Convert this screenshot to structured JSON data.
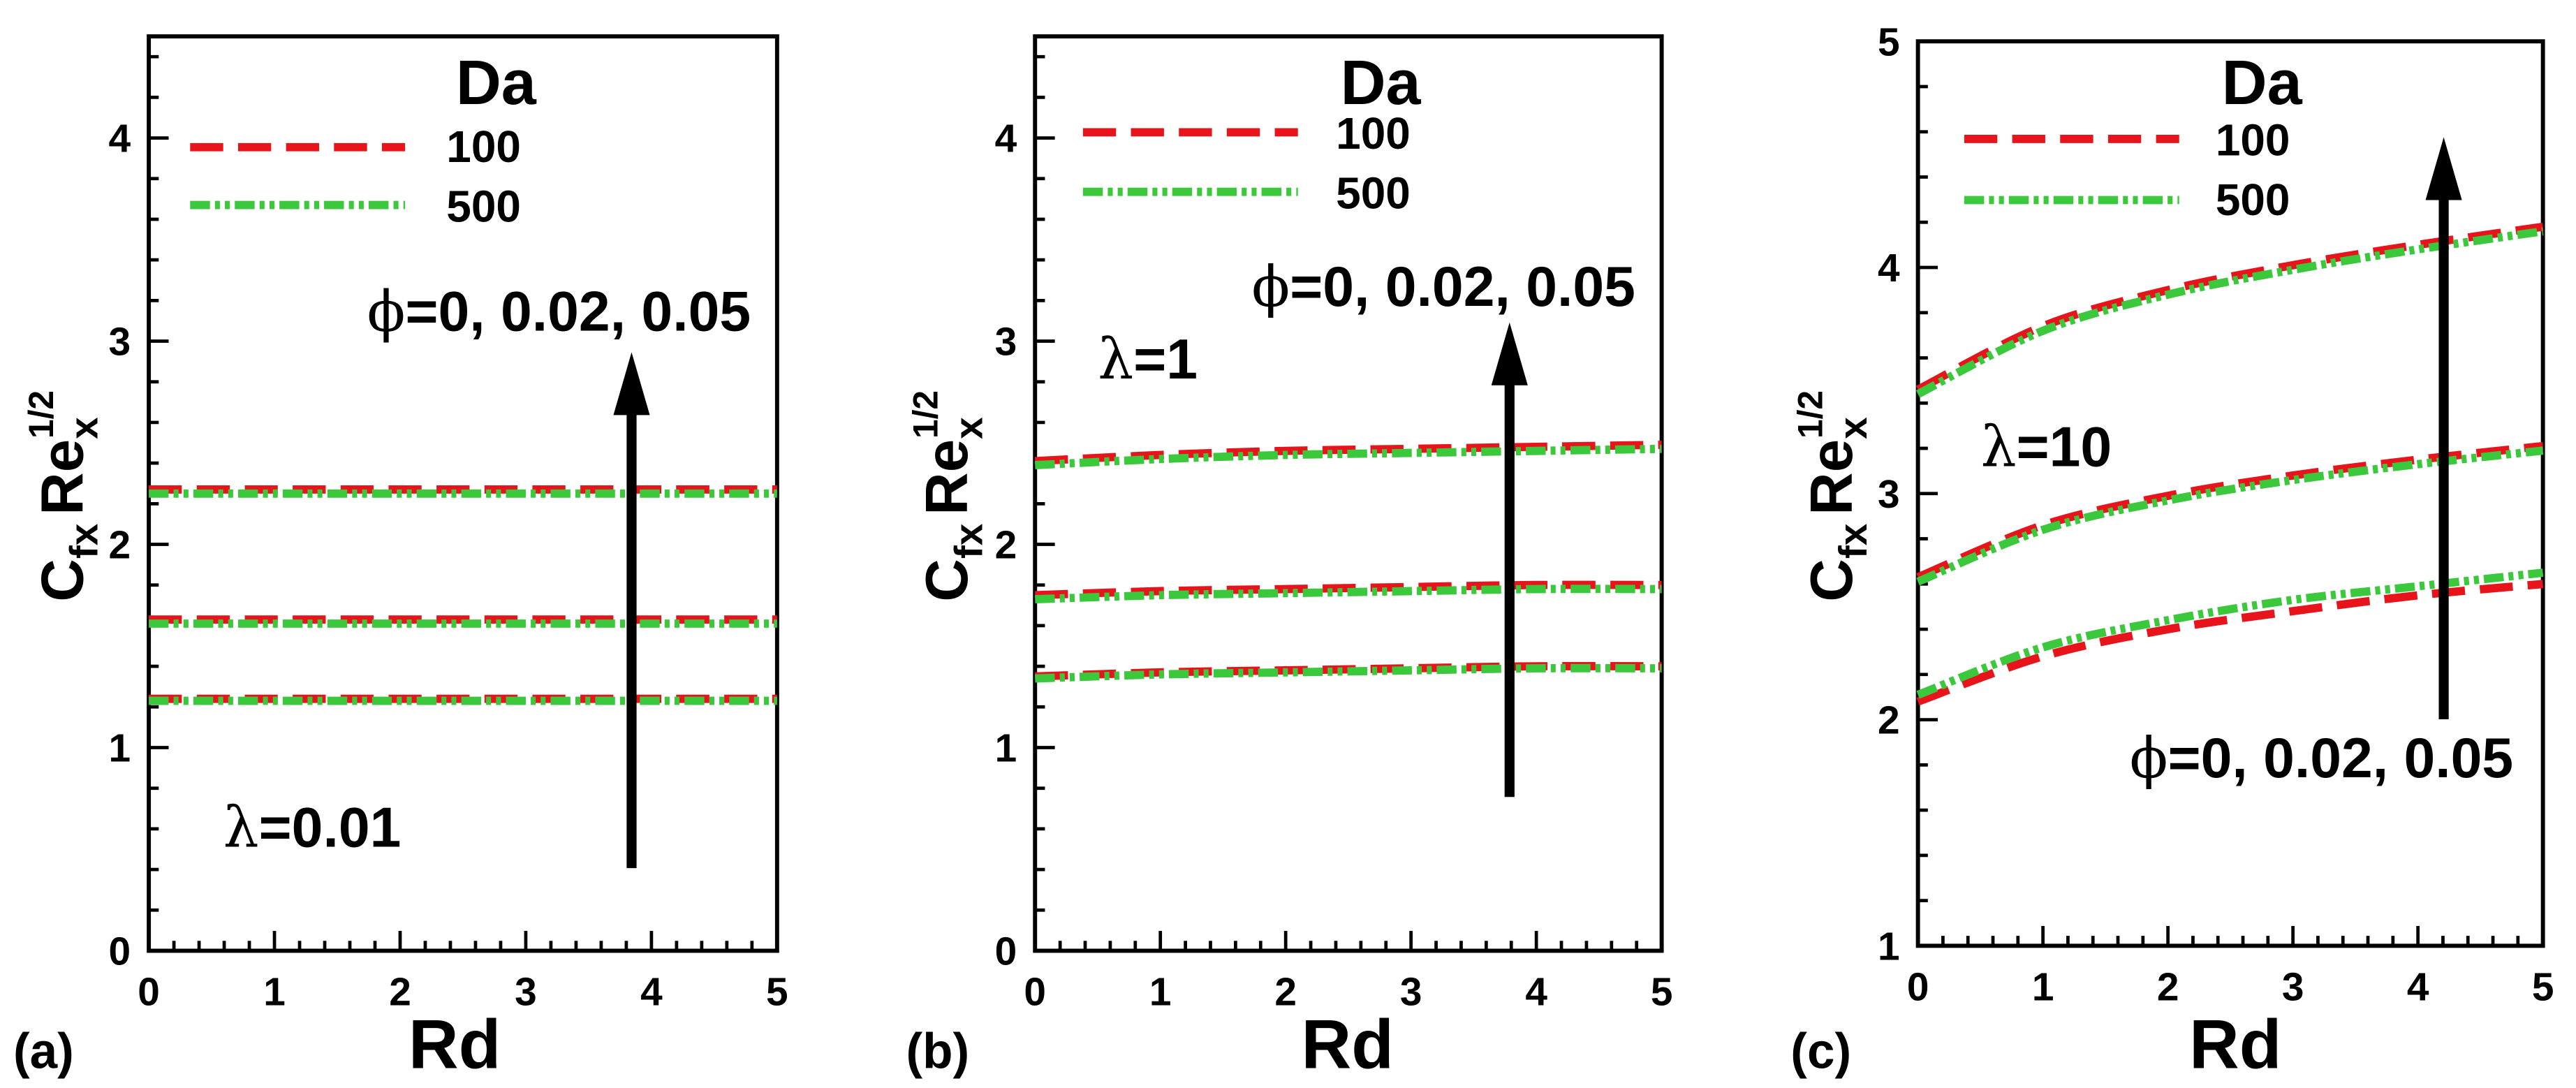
{
  "chart_data": [
    {
      "panel_label": "(a)",
      "type": "line",
      "xlabel": "Rd",
      "ylabel": {
        "c": "C",
        "c_sub": "fx",
        "re": "Re",
        "re_sub": "x",
        "re_sup": "1/2"
      },
      "xlim": [
        0,
        5
      ],
      "ylim": [
        0,
        4.5
      ],
      "xticks": [
        0,
        1,
        2,
        3,
        4,
        5
      ],
      "yticks": [
        0,
        1,
        2,
        3,
        4
      ],
      "legend": {
        "title": "Da",
        "entries": [
          {
            "label": "100",
            "color": "#e8141c"
          },
          {
            "label": "500",
            "color": "#3cc83c"
          }
        ]
      },
      "annotations": {
        "phi_symbol": "ϕ",
        "phi_text": "=0, 0.02, 0.05",
        "lambda_symbol": "λ",
        "lambda_text": "=0.01"
      },
      "x": [
        0,
        1,
        2,
        3,
        4,
        5
      ],
      "series": [
        {
          "da": 100,
          "phi": 0,
          "values": [
            1.24,
            1.24,
            1.24,
            1.24,
            1.24,
            1.24
          ]
        },
        {
          "da": 500,
          "phi": 0,
          "values": [
            1.23,
            1.23,
            1.23,
            1.23,
            1.23,
            1.23
          ]
        },
        {
          "da": 100,
          "phi": 0.02,
          "values": [
            1.63,
            1.63,
            1.63,
            1.63,
            1.63,
            1.63
          ]
        },
        {
          "da": 500,
          "phi": 0.02,
          "values": [
            1.61,
            1.61,
            1.61,
            1.61,
            1.61,
            1.61
          ]
        },
        {
          "da": 100,
          "phi": 0.05,
          "values": [
            2.27,
            2.27,
            2.27,
            2.27,
            2.27,
            2.27
          ]
        },
        {
          "da": 500,
          "phi": 0.05,
          "values": [
            2.25,
            2.25,
            2.25,
            2.25,
            2.25,
            2.25
          ]
        }
      ]
    },
    {
      "panel_label": "(b)",
      "type": "line",
      "xlabel": "Rd",
      "ylabel": {
        "c": "C",
        "c_sub": "fx",
        "re": "Re",
        "re_sub": "x",
        "re_sup": "1/2"
      },
      "xlim": [
        0,
        5
      ],
      "ylim": [
        0,
        4.5
      ],
      "xticks": [
        0,
        1,
        2,
        3,
        4,
        5
      ],
      "yticks": [
        0,
        1,
        2,
        3,
        4
      ],
      "legend": {
        "title": "Da",
        "entries": [
          {
            "label": "100",
            "color": "#e8141c"
          },
          {
            "label": "500",
            "color": "#3cc83c"
          }
        ]
      },
      "annotations": {
        "phi_symbol": "ϕ",
        "phi_text": "=0, 0.02, 0.05",
        "lambda_symbol": "λ",
        "lambda_text": "=1"
      },
      "x": [
        0,
        1,
        2,
        3,
        4,
        5
      ],
      "series": [
        {
          "da": 100,
          "phi": 0,
          "values": [
            1.35,
            1.37,
            1.38,
            1.39,
            1.4,
            1.4
          ]
        },
        {
          "da": 500,
          "phi": 0,
          "values": [
            1.34,
            1.36,
            1.37,
            1.38,
            1.39,
            1.39
          ]
        },
        {
          "da": 100,
          "phi": 0.02,
          "values": [
            1.75,
            1.77,
            1.78,
            1.79,
            1.8,
            1.8
          ]
        },
        {
          "da": 500,
          "phi": 0.02,
          "values": [
            1.73,
            1.75,
            1.76,
            1.77,
            1.78,
            1.78
          ]
        },
        {
          "da": 100,
          "phi": 0.05,
          "values": [
            2.41,
            2.44,
            2.46,
            2.47,
            2.48,
            2.49
          ]
        },
        {
          "da": 500,
          "phi": 0.05,
          "values": [
            2.39,
            2.42,
            2.44,
            2.45,
            2.46,
            2.47
          ]
        }
      ]
    },
    {
      "panel_label": "(c)",
      "type": "line",
      "xlabel": "Rd",
      "ylabel": {
        "c": "C",
        "c_sub": "fx",
        "re": "Re",
        "re_sub": "x",
        "re_sup": "1/2"
      },
      "xlim": [
        0,
        5
      ],
      "ylim": [
        1,
        5
      ],
      "xticks": [
        0,
        1,
        2,
        3,
        4,
        5
      ],
      "yticks": [
        1,
        2,
        3,
        4,
        5
      ],
      "legend": {
        "title": "Da",
        "entries": [
          {
            "label": "100",
            "color": "#e8141c"
          },
          {
            "label": "500",
            "color": "#3cc83c"
          }
        ]
      },
      "annotations": {
        "phi_symbol": "ϕ",
        "phi_text": "=0, 0.02, 0.05",
        "lambda_symbol": "λ",
        "lambda_text": "=10"
      },
      "x": [
        0,
        1,
        2,
        3,
        4,
        5
      ],
      "series": [
        {
          "da": 100,
          "phi": 0,
          "values": [
            2.08,
            2.28,
            2.4,
            2.48,
            2.55,
            2.6
          ]
        },
        {
          "da": 500,
          "phi": 0,
          "values": [
            2.11,
            2.32,
            2.44,
            2.53,
            2.59,
            2.65
          ]
        },
        {
          "da": 100,
          "phi": 0.02,
          "values": [
            2.63,
            2.86,
            2.99,
            3.08,
            3.15,
            3.21
          ]
        },
        {
          "da": 500,
          "phi": 0.02,
          "values": [
            2.61,
            2.84,
            2.97,
            3.06,
            3.13,
            3.19
          ]
        },
        {
          "da": 100,
          "phi": 0.05,
          "values": [
            3.46,
            3.74,
            3.9,
            4.01,
            4.1,
            4.18
          ]
        },
        {
          "da": 500,
          "phi": 0.05,
          "values": [
            3.44,
            3.72,
            3.88,
            3.99,
            4.08,
            4.16
          ]
        }
      ]
    }
  ]
}
